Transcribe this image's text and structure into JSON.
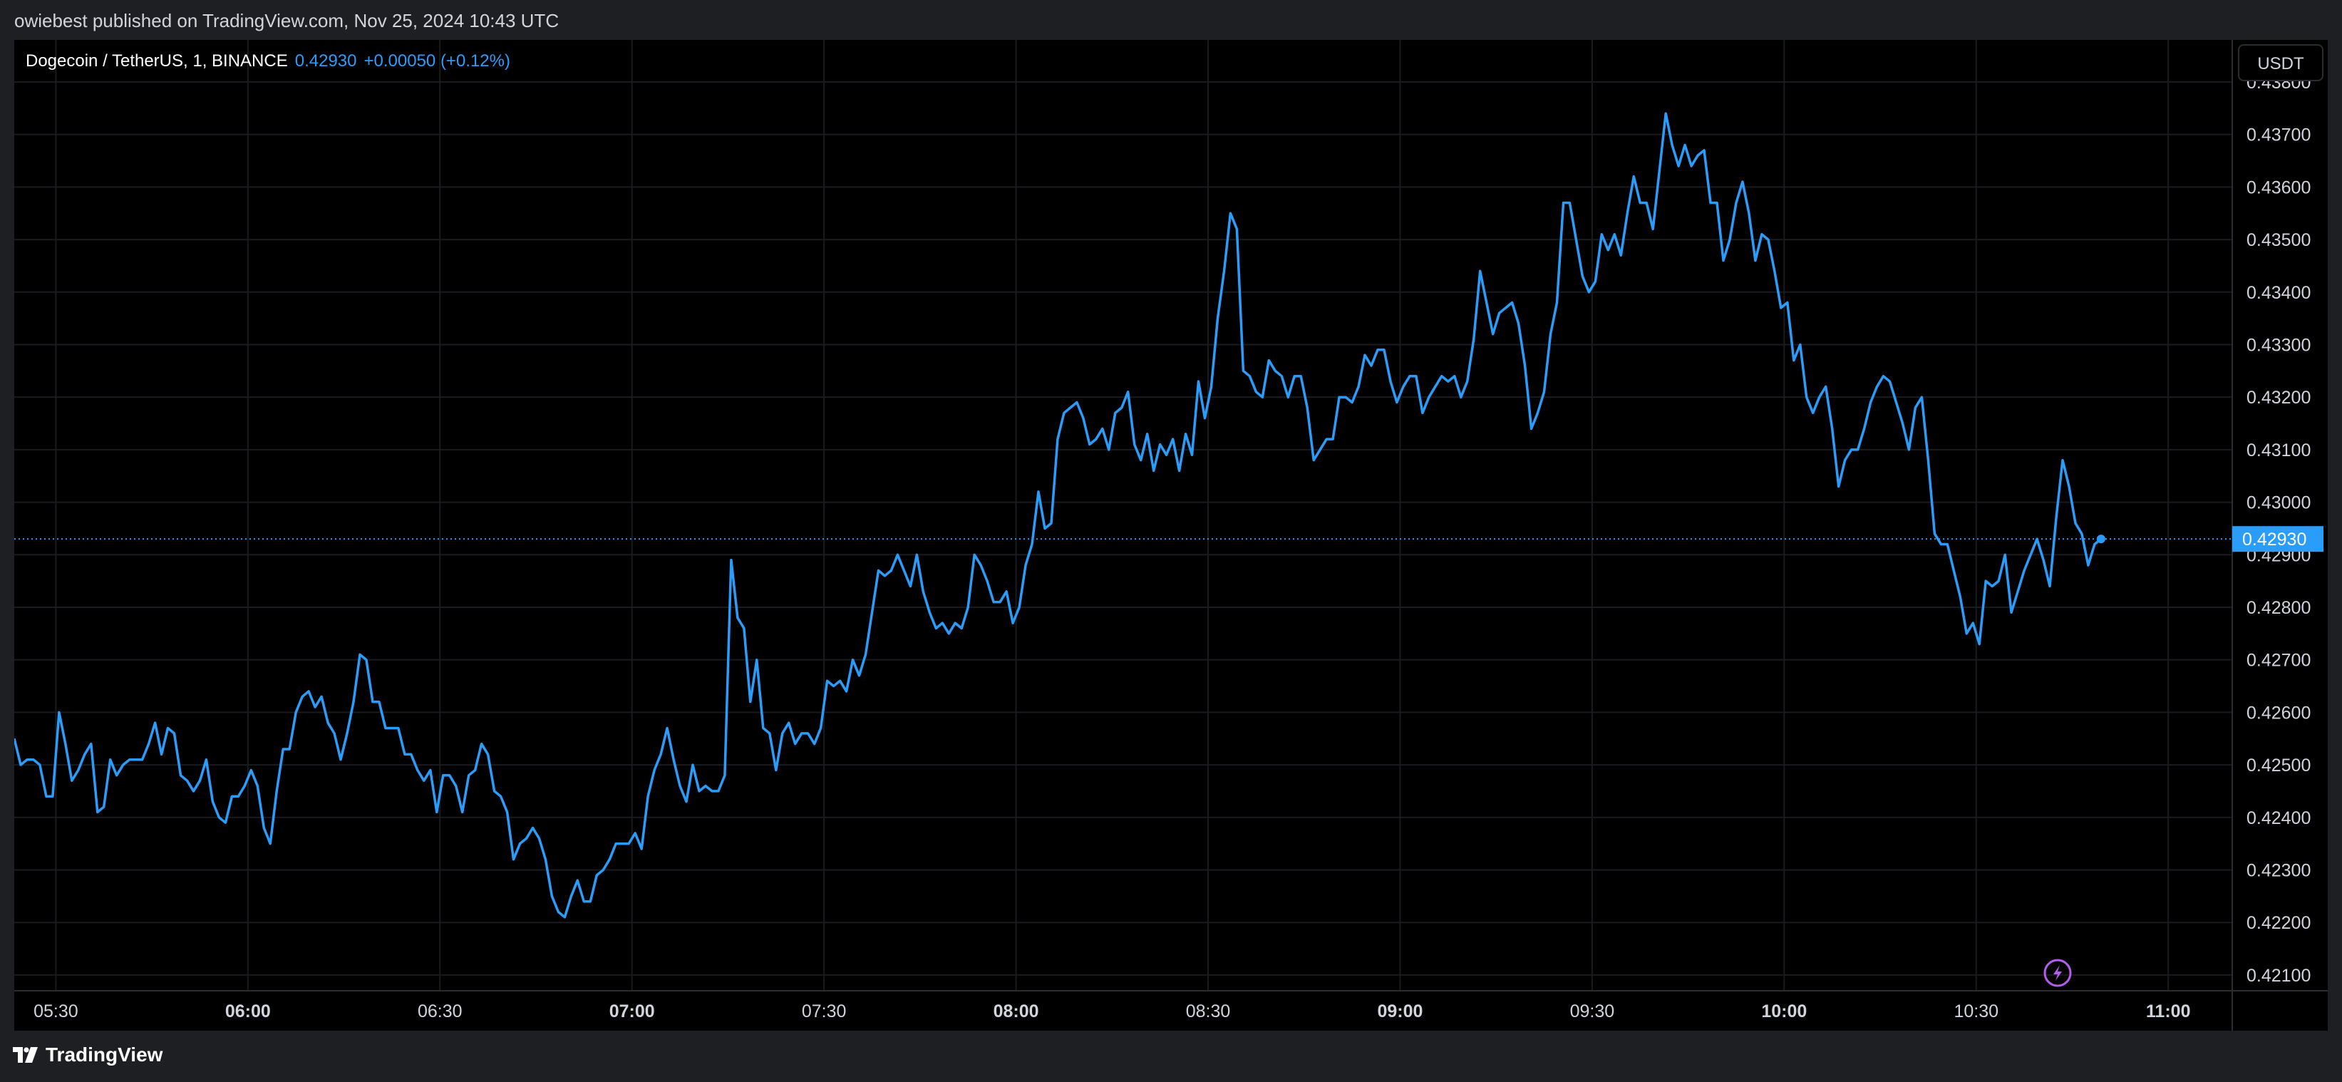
{
  "header": {
    "publisher": "owiebest published on TradingView.com, Nov 25, 2024 10:43 UTC"
  },
  "symbol": {
    "name": "Dogecoin / TetherUS, 1, BINANCE",
    "price": "0.42930",
    "change": "+0.00050 (+0.12%)"
  },
  "currency_label": "USDT",
  "last_price_label": "0.42930",
  "footer": {
    "brand": "TradingView"
  },
  "colors": {
    "line": "#2a9dfa",
    "background": "#000000",
    "grid": "#1a1b1f",
    "text": "#d1d4dc"
  },
  "chart_data": {
    "type": "line",
    "title": "",
    "xlabel": "",
    "ylabel": "",
    "x_ticks": [
      {
        "label": "05:30",
        "value": 0,
        "bold": false
      },
      {
        "label": "06:00",
        "value": 30,
        "bold": true
      },
      {
        "label": "06:30",
        "value": 60,
        "bold": false
      },
      {
        "label": "07:00",
        "value": 90,
        "bold": true
      },
      {
        "label": "07:30",
        "value": 120,
        "bold": false
      },
      {
        "label": "08:00",
        "value": 150,
        "bold": true
      },
      {
        "label": "08:30",
        "value": 180,
        "bold": false
      },
      {
        "label": "09:00",
        "value": 210,
        "bold": true
      },
      {
        "label": "09:30",
        "value": 240,
        "bold": false
      },
      {
        "label": "10:00",
        "value": 270,
        "bold": true
      },
      {
        "label": "10:30",
        "value": 300,
        "bold": false
      },
      {
        "label": "11:00",
        "value": 330,
        "bold": true
      }
    ],
    "y_ticks": [
      "0.43800",
      "0.43700",
      "0.43600",
      "0.43500",
      "0.43400",
      "0.43300",
      "0.43200",
      "0.43100",
      "0.43000",
      "0.42900",
      "0.42800",
      "0.42700",
      "0.42600",
      "0.42500",
      "0.42400",
      "0.42300",
      "0.42200",
      "0.42100"
    ],
    "xlim": [
      -6.5,
      340
    ],
    "ylim": [
      0.4207,
      0.4388
    ],
    "last_price": 0.4293,
    "series": [
      {
        "x_start": -6.5,
        "x_step": 1,
        "values": [
          0.4255,
          0.425,
          0.4251,
          0.4251,
          0.425,
          0.4244,
          0.4244,
          0.426,
          0.4254,
          0.4247,
          0.4249,
          0.4252,
          0.4254,
          0.4241,
          0.4242,
          0.4251,
          0.4248,
          0.425,
          0.4251,
          0.4251,
          0.4251,
          0.4254,
          0.4258,
          0.4252,
          0.4257,
          0.4256,
          0.4248,
          0.4247,
          0.4245,
          0.4247,
          0.4251,
          0.4243,
          0.424,
          0.4239,
          0.4244,
          0.4244,
          0.4246,
          0.4249,
          0.4246,
          0.4238,
          0.4235,
          0.4245,
          0.4253,
          0.4253,
          0.426,
          0.4263,
          0.4264,
          0.4261,
          0.4263,
          0.4258,
          0.4256,
          0.4251,
          0.4256,
          0.4262,
          0.4271,
          0.427,
          0.4262,
          0.4262,
          0.4257,
          0.4257,
          0.4257,
          0.4252,
          0.4252,
          0.4249,
          0.4247,
          0.4249,
          0.4241,
          0.4248,
          0.4248,
          0.4246,
          0.4241,
          0.4248,
          0.4249,
          0.4254,
          0.4252,
          0.4245,
          0.4244,
          0.4241,
          0.4232,
          0.4235,
          0.4236,
          0.4238,
          0.4236,
          0.4232,
          0.4225,
          0.4222,
          0.4221,
          0.4225,
          0.4228,
          0.4224,
          0.4224,
          0.4229,
          0.423,
          0.4232,
          0.4235,
          0.4235,
          0.4235,
          0.4237,
          0.4234,
          0.4244,
          0.4249,
          0.4252,
          0.4257,
          0.4251,
          0.4246,
          0.4243,
          0.425,
          0.4245,
          0.4246,
          0.4245,
          0.4245,
          0.4248,
          0.4289,
          0.4278,
          0.4276,
          0.4262,
          0.427,
          0.4257,
          0.4256,
          0.4249,
          0.4256,
          0.4258,
          0.4254,
          0.4256,
          0.4256,
          0.4254,
          0.4257,
          0.4266,
          0.4265,
          0.4266,
          0.4264,
          0.427,
          0.4267,
          0.4271,
          0.4279,
          0.4287,
          0.4286,
          0.4287,
          0.429,
          0.4287,
          0.4284,
          0.429,
          0.4283,
          0.4279,
          0.4276,
          0.4277,
          0.4275,
          0.4277,
          0.4276,
          0.428,
          0.429,
          0.4288,
          0.4285,
          0.4281,
          0.4281,
          0.4283,
          0.4277,
          0.428,
          0.4288,
          0.4292,
          0.4302,
          0.4295,
          0.4296,
          0.4312,
          0.4317,
          0.4318,
          0.4319,
          0.4316,
          0.4311,
          0.4312,
          0.4314,
          0.431,
          0.4317,
          0.4318,
          0.4321,
          0.4311,
          0.4308,
          0.4313,
          0.4306,
          0.4311,
          0.4309,
          0.4312,
          0.4306,
          0.4313,
          0.4309,
          0.4323,
          0.4316,
          0.4322,
          0.4335,
          0.4344,
          0.4355,
          0.4352,
          0.4325,
          0.4324,
          0.4321,
          0.432,
          0.4327,
          0.4325,
          0.4324,
          0.432,
          0.4324,
          0.4324,
          0.4318,
          0.4308,
          0.431,
          0.4312,
          0.4312,
          0.432,
          0.432,
          0.4319,
          0.4322,
          0.4328,
          0.4326,
          0.4329,
          0.4329,
          0.4323,
          0.4319,
          0.4322,
          0.4324,
          0.4324,
          0.4317,
          0.432,
          0.4322,
          0.4324,
          0.4323,
          0.4324,
          0.432,
          0.4323,
          0.4331,
          0.4344,
          0.4338,
          0.4332,
          0.4336,
          0.4337,
          0.4338,
          0.4334,
          0.4326,
          0.4314,
          0.4317,
          0.4321,
          0.4332,
          0.4338,
          0.4357,
          0.4357,
          0.435,
          0.4343,
          0.434,
          0.4342,
          0.4351,
          0.4348,
          0.4351,
          0.4347,
          0.4355,
          0.4362,
          0.4357,
          0.4357,
          0.4352,
          0.4363,
          0.4374,
          0.4368,
          0.4364,
          0.4368,
          0.4364,
          0.4366,
          0.4367,
          0.4357,
          0.4357,
          0.4346,
          0.435,
          0.4357,
          0.4361,
          0.4355,
          0.4346,
          0.4351,
          0.435,
          0.4344,
          0.4337,
          0.4338,
          0.4327,
          0.433,
          0.432,
          0.4317,
          0.432,
          0.4322,
          0.4314,
          0.4303,
          0.4308,
          0.431,
          0.431,
          0.4314,
          0.4319,
          0.4322,
          0.4324,
          0.4323,
          0.4319,
          0.4315,
          0.431,
          0.4318,
          0.432,
          0.4308,
          0.4294,
          0.4292,
          0.4292,
          0.4287,
          0.4282,
          0.4275,
          0.4277,
          0.4273,
          0.4285,
          0.4284,
          0.4285,
          0.429,
          0.4279,
          0.4283,
          0.4287,
          0.429,
          0.4293,
          0.4289,
          0.4284,
          0.4297,
          0.4308,
          0.4303,
          0.4296,
          0.4294,
          0.4288,
          0.4292,
          0.4293
        ]
      }
    ]
  }
}
